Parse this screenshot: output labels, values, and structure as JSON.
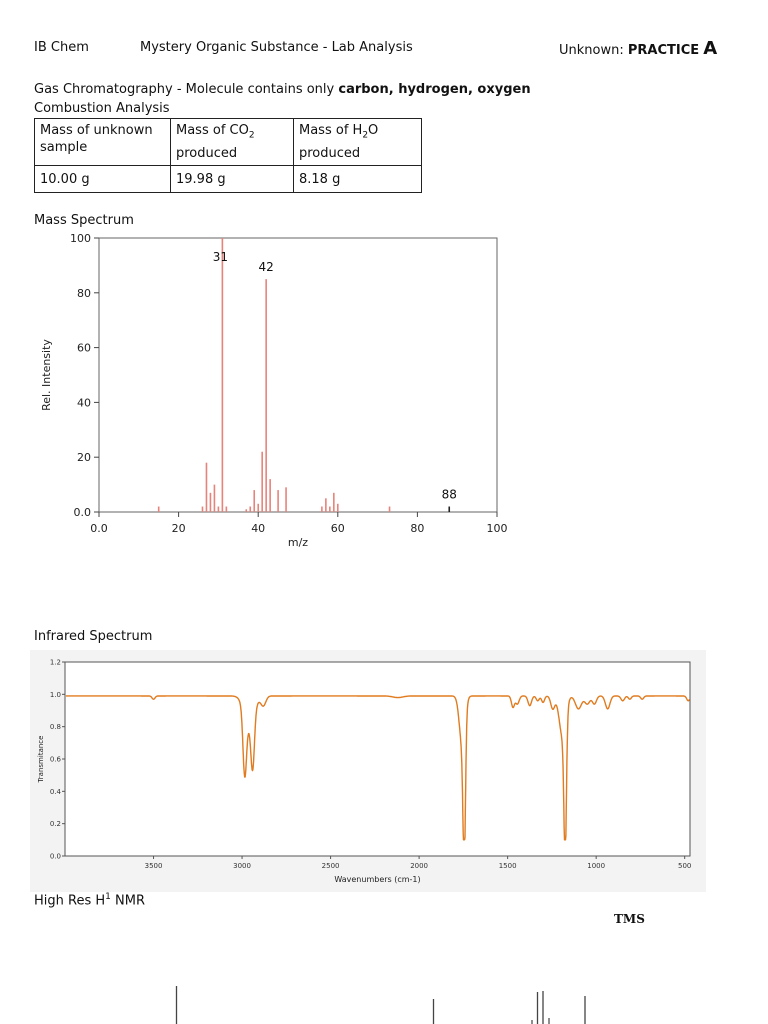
{
  "header": {
    "course": "IB Chem",
    "title": "Mystery Organic Substance - Lab Analysis",
    "unknown_label": "Unknown: ",
    "unknown_name": "PRACTICE",
    "unknown_letter": "A"
  },
  "gc_line": {
    "prefix": "Gas Chromatography - Molecule contains only ",
    "elements": "carbon, hydrogen, oxygen"
  },
  "combustion": {
    "heading": "Combustion Analysis",
    "headers": [
      {
        "line1": "Mass of unknown",
        "line2": "sample"
      },
      {
        "pre": "Mass of CO",
        "sub": "2",
        "post": "",
        "line2": "produced"
      },
      {
        "pre": "Mass of H",
        "sub": "2",
        "post": "O",
        "line2": "produced"
      }
    ],
    "values": [
      "10.00 g",
      "19.98 g",
      "8.18 g"
    ]
  },
  "mass_spectrum": {
    "heading": "Mass Spectrum",
    "peak_labels": [
      "31",
      "42",
      "88"
    ]
  },
  "ir_spectrum": {
    "heading": "Infrared Spectrum"
  },
  "nmr": {
    "heading_pre": "High Res H",
    "heading_sup": "1",
    "heading_post": " NMR",
    "tms": "TMS"
  },
  "chart_data": [
    {
      "type": "bar",
      "title": "",
      "xlabel": "m/z",
      "ylabel": "Rel. Intensity",
      "xlim": [
        0,
        100
      ],
      "ylim": [
        0,
        100
      ],
      "xticks": [
        0,
        20,
        40,
        60,
        80,
        100
      ],
      "yticks": [
        0,
        20,
        40,
        60,
        80,
        100
      ],
      "xtick_labels": [
        "0.0",
        "20",
        "40",
        "60",
        "80",
        "100"
      ],
      "ytick_labels": [
        "0.0",
        "20",
        "40",
        "60",
        "80",
        "100"
      ],
      "grid": false,
      "color": "#e8837a",
      "peaks": [
        {
          "mz": 15,
          "intensity": 2
        },
        {
          "mz": 26,
          "intensity": 2
        },
        {
          "mz": 27,
          "intensity": 18
        },
        {
          "mz": 28,
          "intensity": 7
        },
        {
          "mz": 29,
          "intensity": 10
        },
        {
          "mz": 30,
          "intensity": 2
        },
        {
          "mz": 31,
          "intensity": 100
        },
        {
          "mz": 32,
          "intensity": 2
        },
        {
          "mz": 37,
          "intensity": 1
        },
        {
          "mz": 38,
          "intensity": 2
        },
        {
          "mz": 39,
          "intensity": 8
        },
        {
          "mz": 40,
          "intensity": 3
        },
        {
          "mz": 41,
          "intensity": 22
        },
        {
          "mz": 42,
          "intensity": 85
        },
        {
          "mz": 43,
          "intensity": 12
        },
        {
          "mz": 45,
          "intensity": 8
        },
        {
          "mz": 47,
          "intensity": 9
        },
        {
          "mz": 56,
          "intensity": 2
        },
        {
          "mz": 57,
          "intensity": 5
        },
        {
          "mz": 58,
          "intensity": 2
        },
        {
          "mz": 59,
          "intensity": 7
        },
        {
          "mz": 60,
          "intensity": 3
        },
        {
          "mz": 73,
          "intensity": 2
        },
        {
          "mz": 88,
          "intensity": 2
        }
      ],
      "annotations": [
        {
          "text": "31",
          "mz": 31
        },
        {
          "text": "42",
          "mz": 42
        },
        {
          "text": "88",
          "mz": 88
        }
      ]
    },
    {
      "type": "line",
      "title": "",
      "xlabel": "Wavenumbers (cm-1)",
      "ylabel": "Transmitance",
      "xlim": [
        4000,
        470
      ],
      "ylim": [
        0.0,
        1.2
      ],
      "xticks": [
        3500,
        3000,
        2500,
        2000,
        1500,
        1000,
        500
      ],
      "yticks": [
        0.0,
        0.2,
        0.4,
        0.6,
        0.8,
        1.0,
        1.2
      ],
      "xtick_labels": [
        "3500",
        "3000",
        "2500",
        "2000",
        "1500",
        "1000",
        "500"
      ],
      "ytick_labels": [
        "0.0",
        "0.2",
        "0.4",
        "0.6",
        "0.8",
        "1.0",
        "1.2"
      ],
      "color": "#e07b1f",
      "baseline": 0.99,
      "bands": [
        {
          "center": 3500,
          "depth": 0.02,
          "width": 12
        },
        {
          "center": 2985,
          "depth": 0.38,
          "width": 14
        },
        {
          "center": 2940,
          "depth": 0.32,
          "width": 14
        },
        {
          "center": 2960,
          "depth": 0.18,
          "width": 40
        },
        {
          "center": 2880,
          "depth": 0.06,
          "width": 20
        },
        {
          "center": 2120,
          "depth": 0.01,
          "width": 40
        },
        {
          "center": 1745,
          "depth": 0.82,
          "width": 10
        },
        {
          "center": 1757,
          "depth": 0.3,
          "width": 22
        },
        {
          "center": 1470,
          "depth": 0.07,
          "width": 12
        },
        {
          "center": 1445,
          "depth": 0.05,
          "width": 14
        },
        {
          "center": 1375,
          "depth": 0.06,
          "width": 14
        },
        {
          "center": 1330,
          "depth": 0.03,
          "width": 12
        },
        {
          "center": 1300,
          "depth": 0.04,
          "width": 12
        },
        {
          "center": 1245,
          "depth": 0.08,
          "width": 16
        },
        {
          "center": 1175,
          "depth": 0.84,
          "width": 10
        },
        {
          "center": 1190,
          "depth": 0.25,
          "width": 26
        },
        {
          "center": 1100,
          "depth": 0.08,
          "width": 24
        },
        {
          "center": 1050,
          "depth": 0.05,
          "width": 20
        },
        {
          "center": 1010,
          "depth": 0.05,
          "width": 16
        },
        {
          "center": 935,
          "depth": 0.08,
          "width": 18
        },
        {
          "center": 850,
          "depth": 0.03,
          "width": 14
        },
        {
          "center": 810,
          "depth": 0.02,
          "width": 12
        },
        {
          "center": 740,
          "depth": 0.02,
          "width": 12
        },
        {
          "center": 480,
          "depth": 0.03,
          "width": 12
        }
      ]
    },
    {
      "type": "line",
      "title": "",
      "xlabel": "",
      "ylabel": "",
      "peaks_ppm": [
        4.1,
        2.0,
        1.25
      ],
      "note": "partially visible, cut off at page bottom"
    }
  ]
}
